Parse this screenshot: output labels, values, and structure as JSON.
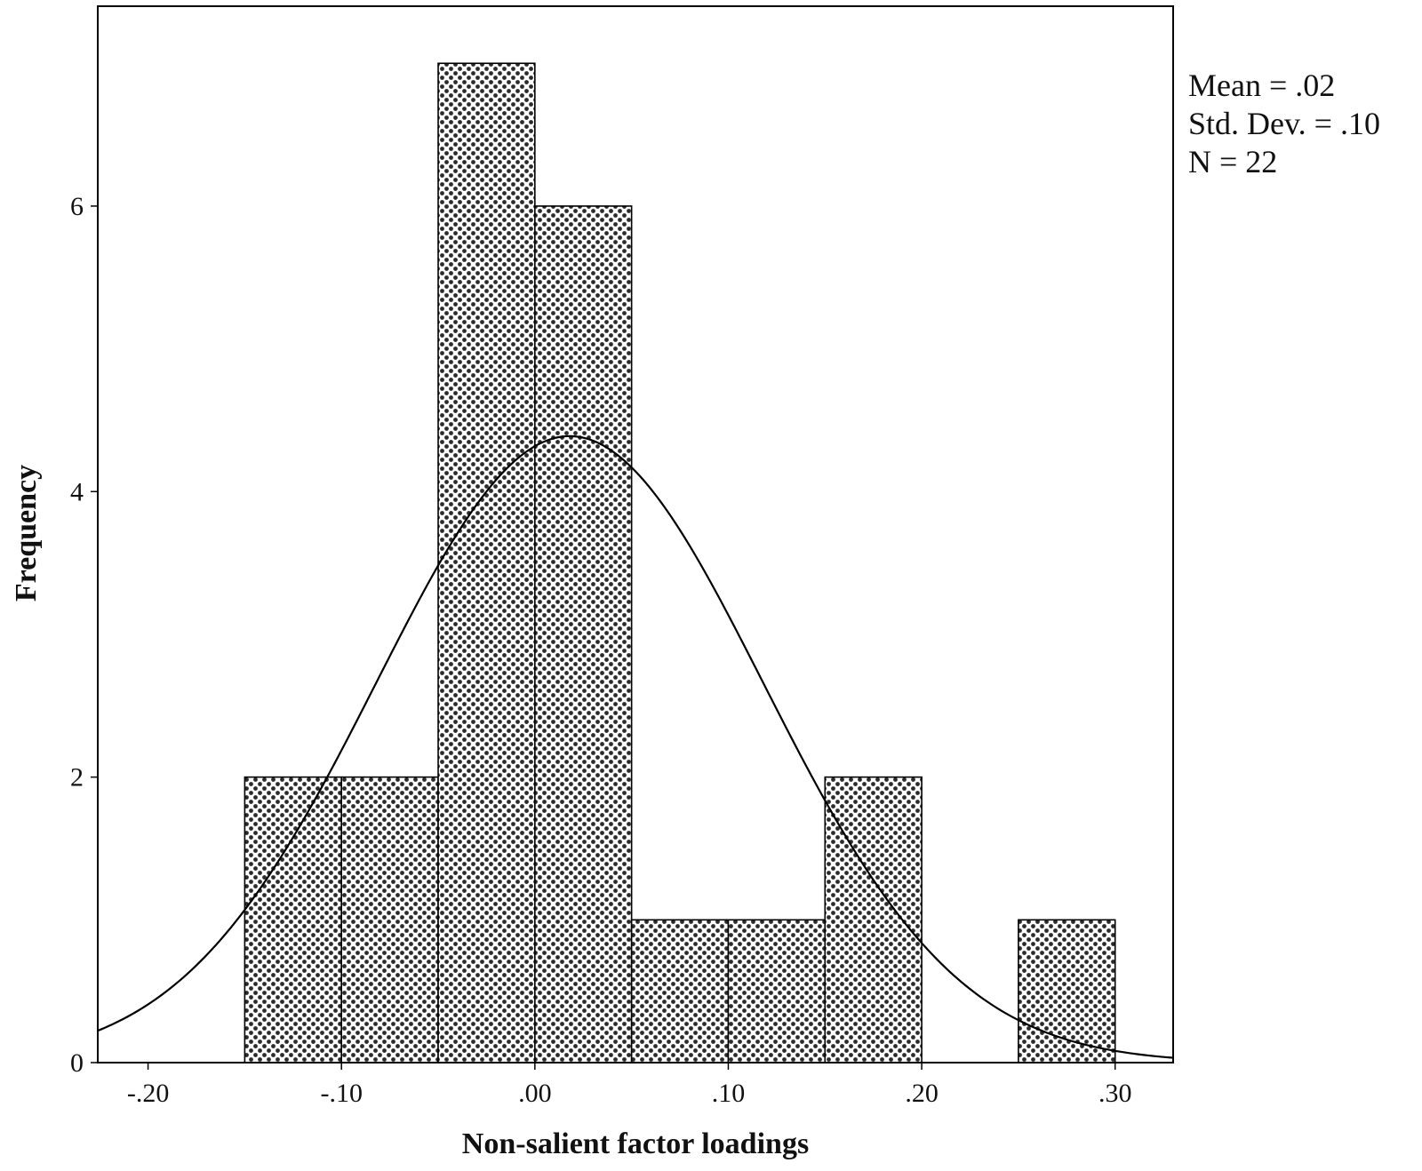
{
  "chart_data": {
    "type": "bar",
    "subtype": "histogram",
    "xlabel": "Non-salient factor loadings",
    "ylabel": "Frequency",
    "xlim": [
      -0.226,
      0.33
    ],
    "ylim": [
      0,
      7.4
    ],
    "xticks": [
      {
        "value": -0.2,
        "label": "-.20"
      },
      {
        "value": -0.1,
        "label": "-.10"
      },
      {
        "value": 0.0,
        "label": ".00"
      },
      {
        "value": 0.1,
        "label": ".10"
      },
      {
        "value": 0.2,
        "label": ".20"
      },
      {
        "value": 0.3,
        "label": ".30"
      }
    ],
    "yticks": [
      {
        "value": 0,
        "label": "0"
      },
      {
        "value": 2,
        "label": "2"
      },
      {
        "value": 4,
        "label": "4"
      },
      {
        "value": 6,
        "label": "6"
      }
    ],
    "bin_width": 0.05,
    "bins": [
      {
        "start": -0.15,
        "end": -0.1,
        "count": 2
      },
      {
        "start": -0.1,
        "end": -0.05,
        "count": 2
      },
      {
        "start": -0.05,
        "end": 0.0,
        "count": 7
      },
      {
        "start": 0.0,
        "end": 0.05,
        "count": 6
      },
      {
        "start": 0.05,
        "end": 0.1,
        "count": 1
      },
      {
        "start": 0.1,
        "end": 0.15,
        "count": 1
      },
      {
        "start": 0.15,
        "end": 0.2,
        "count": 2
      },
      {
        "start": 0.2,
        "end": 0.25,
        "count": 0
      },
      {
        "start": 0.25,
        "end": 0.3,
        "count": 1
      }
    ],
    "normal_curve": {
      "mean": 0.018,
      "sd": 0.1,
      "n": 22
    },
    "stats": [
      {
        "key": "mean",
        "text": "Mean = .02"
      },
      {
        "key": "sd",
        "text": "Std. Dev. = .10"
      },
      {
        "key": "n",
        "text": "N = 22"
      }
    ],
    "grid": false,
    "legend": "none",
    "stats_placement": "top-right outside plot",
    "colors": {
      "bar_pattern": "#2b2b2b",
      "bar_outline": "#000000",
      "curve": "#000000",
      "frame": "#000000"
    }
  }
}
